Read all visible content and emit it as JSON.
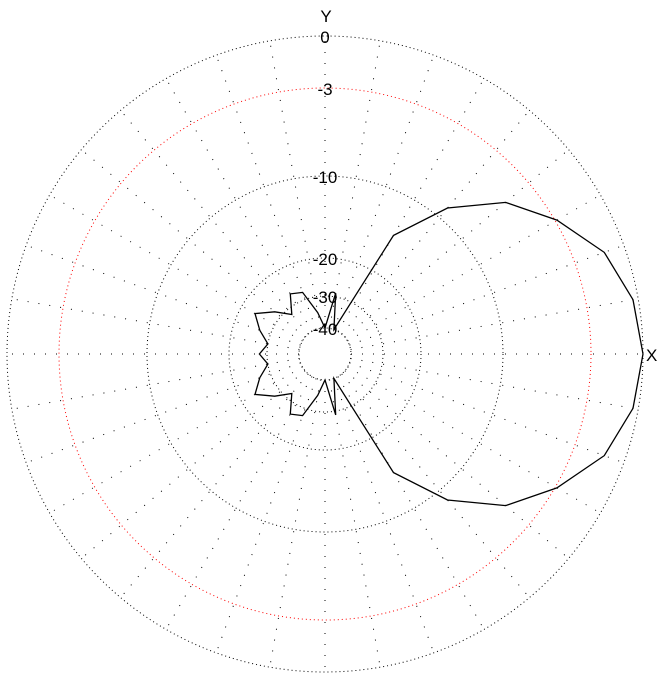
{
  "chart_data": {
    "type": "polar",
    "scale": "dB",
    "axis_labels": {
      "x": "X",
      "y": "Y"
    },
    "rlim": [
      -40,
      0
    ],
    "rings": [
      {
        "label": "0",
        "value": 0,
        "highlight": false
      },
      {
        "label": "-3",
        "value": -3,
        "highlight": true
      },
      {
        "label": "-10",
        "value": -10,
        "highlight": false
      },
      {
        "label": "-20",
        "value": -20,
        "highlight": false
      },
      {
        "label": "-30",
        "value": -30,
        "highlight": false
      },
      {
        "label": "-40",
        "value": -40,
        "highlight": false
      }
    ],
    "spoke_step_deg": 10,
    "grid": true,
    "colors": {
      "grid": "#000000",
      "highlight_ring": "#ff0000",
      "pattern": "#000000"
    },
    "pattern": {
      "name": "",
      "angle_deg": [
        0,
        10,
        20,
        30,
        40,
        50,
        60,
        70,
        80,
        90,
        100,
        110,
        120,
        130,
        140,
        150,
        160,
        170,
        180,
        190,
        200,
        210,
        220,
        230,
        240,
        250,
        260,
        270,
        280,
        290,
        300,
        310,
        320,
        330,
        340,
        350,
        360
      ],
      "gain_db": [
        0,
        -0.3,
        -1.2,
        -2.9,
        -5.4,
        -9,
        -15,
        -40,
        -29,
        -40,
        -35,
        -28,
        -27,
        -32,
        -28,
        -24,
        -27,
        -30,
        -28,
        -30,
        -27,
        -24,
        -28,
        -32,
        -27,
        -28,
        -35,
        -40,
        -29,
        -40,
        -15,
        -9,
        -5.4,
        -2.9,
        -1.2,
        -0.3,
        0
      ]
    }
  }
}
